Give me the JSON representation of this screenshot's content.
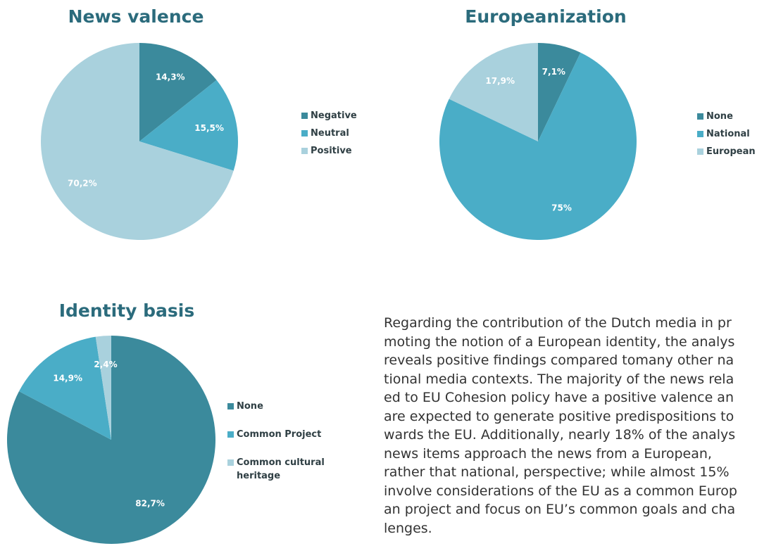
{
  "chart_data": [
    {
      "type": "pie",
      "title": "News valence",
      "categories": [
        "Negative",
        "Neutral",
        "Positive"
      ],
      "values": [
        14.3,
        15.5,
        70.2
      ],
      "value_labels": [
        "14,3%",
        "15,5%",
        "70,2%"
      ],
      "colors": [
        "#3b8a9c",
        "#4aadc7",
        "#a9d1dd"
      ]
    },
    {
      "type": "pie",
      "title": "Europeanization",
      "categories": [
        "None",
        "National",
        "European"
      ],
      "values": [
        7.1,
        75,
        17.9
      ],
      "value_labels": [
        "7,1%",
        "75%",
        "17,9%"
      ],
      "colors": [
        "#3b8a9c",
        "#4aadc7",
        "#a9d1dd"
      ]
    },
    {
      "type": "pie",
      "title": "Identity basis",
      "categories": [
        "None",
        "Common Project",
        "Common cultural heritage"
      ],
      "values": [
        82.7,
        14.9,
        2.4
      ],
      "value_labels": [
        "82,7%",
        "14,9%",
        "2,4%"
      ],
      "colors": [
        "#3b8a9c",
        "#4aadc7",
        "#a9d1dd"
      ]
    }
  ],
  "paragraph": [
    "Regarding the contribution of the Dutch media in pr",
    "moting the notion of a European identity, the analys",
    "reveals positive findings compared tomany other na",
    "tional media contexts. The majority of the news rela",
    "ed to EU Cohesion policy have a positive valence an",
    "are expected to generate positive predispositions to",
    "wards the EU. Additionally, nearly 18% of the analys",
    "news items approach the news from a European,",
    "rather that national, perspective; while almost 15%",
    "involve considerations of the EU as a common Europ",
    "an project and focus on EU’s common goals and cha",
    "lenges."
  ]
}
